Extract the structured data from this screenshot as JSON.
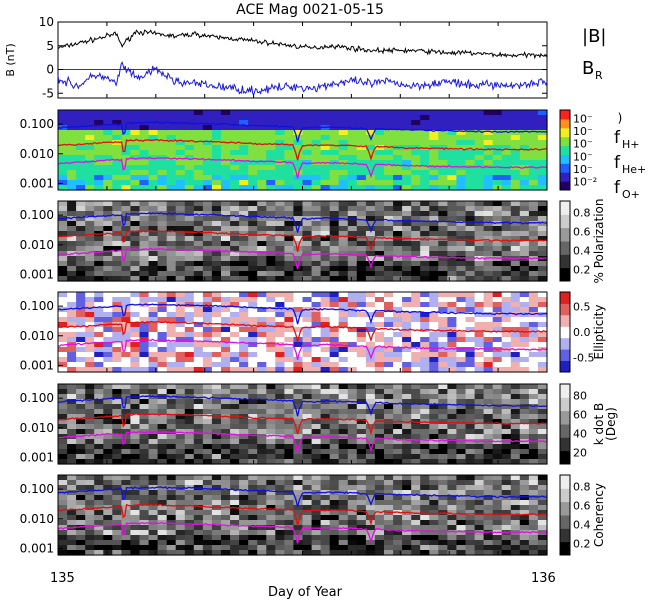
{
  "title": "ACE Mag 0021-05-15",
  "xlabel": "Day of Year",
  "x_ticks": [
    "135",
    "136"
  ],
  "legend": {
    "b_total": "|B|",
    "b_r": "B",
    "b_r_sub": "R",
    "f_h": "f",
    "f_h_sub": "H+",
    "f_he": "f",
    "f_he_sub": "He+",
    "f_o": "f",
    "f_o_sub": "O+"
  },
  "colors": {
    "b_total": "#000000",
    "b_r": "#1a1adc",
    "f_h": "#1010e0",
    "f_he": "#e01010",
    "f_o": "#e010e0"
  },
  "chart_data": [
    {
      "type": "line",
      "panel": "magnetic-field",
      "ylabel": "B (nT)",
      "ylim": [
        -6,
        10
      ],
      "y_ticks": [
        "-5",
        "0",
        "5",
        "10"
      ],
      "xlim": [
        135,
        136
      ],
      "x": [
        135.0,
        135.04,
        135.08,
        135.12,
        135.13,
        135.16,
        135.2,
        135.24,
        135.28,
        135.32,
        135.36,
        135.4,
        135.44,
        135.48,
        135.52,
        135.56,
        135.6,
        135.64,
        135.68,
        135.72,
        135.76,
        135.8,
        135.84,
        135.88,
        135.92,
        135.96,
        136.0
      ],
      "series": [
        {
          "name": "|B|",
          "values": [
            4.5,
            5.5,
            6.5,
            7.5,
            5.0,
            8.0,
            7.5,
            7.0,
            7.5,
            6.8,
            6.5,
            6.0,
            5.5,
            5.0,
            4.5,
            5.0,
            4.5,
            4.0,
            4.0,
            4.0,
            3.8,
            3.5,
            3.5,
            3.2,
            3.0,
            3.0,
            3.2
          ]
        },
        {
          "name": "B_R",
          "values": [
            -2.0,
            -3.5,
            -1.0,
            -3.0,
            1.0,
            -2.0,
            0.0,
            -2.5,
            -3.0,
            -3.5,
            -4.0,
            -4.5,
            -4.0,
            -3.5,
            -4.0,
            -3.0,
            -2.5,
            -3.0,
            -2.5,
            -3.5,
            -3.0,
            -2.5,
            -3.5,
            -3.0,
            -3.5,
            -3.0,
            -2.5
          ]
        }
      ]
    },
    {
      "type": "heatmap",
      "panel": "power-spectrum",
      "ylabel": "",
      "y_scale": "log",
      "ylim": [
        0.0006,
        0.3
      ],
      "y_ticks": [
        "0.001",
        "0.010",
        "0.100"
      ],
      "colorbar_ticks": [
        "10⁻²",
        "10⁻",
        "10⁻",
        "10⁻",
        "10⁻",
        "10⁻"
      ],
      "colorbar_label": ")"
    },
    {
      "type": "heatmap",
      "panel": "polarization",
      "ylabel": "",
      "y_scale": "log",
      "ylim": [
        0.0006,
        0.3
      ],
      "y_ticks": [
        "0.001",
        "0.010",
        "0.100"
      ],
      "colorbar_ticks": [
        "0.2",
        "0.4",
        "0.6",
        "0.8"
      ],
      "colorbar_label": "% Polarization"
    },
    {
      "type": "heatmap",
      "panel": "ellipticity",
      "ylabel": "",
      "y_scale": "log",
      "ylim": [
        0.0006,
        0.3
      ],
      "y_ticks": [
        "0.001",
        "0.010",
        "0.100"
      ],
      "colorbar_ticks": [
        "-0.5",
        "0.0",
        "0.5"
      ],
      "colorbar_label": "Ellipticity"
    },
    {
      "type": "heatmap",
      "panel": "k-dot-b",
      "ylabel": "",
      "y_scale": "log",
      "ylim": [
        0.0006,
        0.3
      ],
      "y_ticks": [
        "0.001",
        "0.010",
        "0.100"
      ],
      "colorbar_ticks": [
        "20",
        "40",
        "60",
        "80"
      ],
      "colorbar_label": "k dot B",
      "colorbar_label2": "(Deg)"
    },
    {
      "type": "heatmap",
      "panel": "coherency",
      "ylabel": "",
      "y_scale": "log",
      "ylim": [
        0.0006,
        0.3
      ],
      "y_ticks": [
        "0.001",
        "0.010",
        "0.100"
      ],
      "colorbar_ticks": [
        "0.2",
        "0.4",
        "0.6",
        "0.8"
      ],
      "colorbar_label": "Coherency"
    }
  ],
  "gyrofrequency_lines": {
    "x": [
      135.0,
      135.05,
      135.1,
      135.13,
      135.135,
      135.14,
      135.2,
      135.3,
      135.4,
      135.45,
      135.48,
      135.49,
      135.5,
      135.55,
      135.6,
      135.63,
      135.64,
      135.65,
      135.7,
      135.8,
      135.9,
      136.0
    ],
    "f_h": [
      0.075,
      0.085,
      0.095,
      0.1,
      0.02,
      0.11,
      0.115,
      0.105,
      0.09,
      0.085,
      0.08,
      0.025,
      0.075,
      0.08,
      0.075,
      0.07,
      0.03,
      0.07,
      0.065,
      0.06,
      0.055,
      0.055
    ],
    "f_he": [
      0.019,
      0.021,
      0.024,
      0.025,
      0.005,
      0.028,
      0.029,
      0.026,
      0.022,
      0.021,
      0.02,
      0.006,
      0.019,
      0.02,
      0.019,
      0.0175,
      0.007,
      0.0175,
      0.016,
      0.015,
      0.014,
      0.014
    ],
    "f_o": [
      0.0047,
      0.0053,
      0.006,
      0.0063,
      0.0012,
      0.007,
      0.0072,
      0.0065,
      0.0056,
      0.0053,
      0.005,
      0.0015,
      0.0047,
      0.005,
      0.0047,
      0.0044,
      0.0018,
      0.0044,
      0.004,
      0.0037,
      0.0035,
      0.0035
    ]
  }
}
